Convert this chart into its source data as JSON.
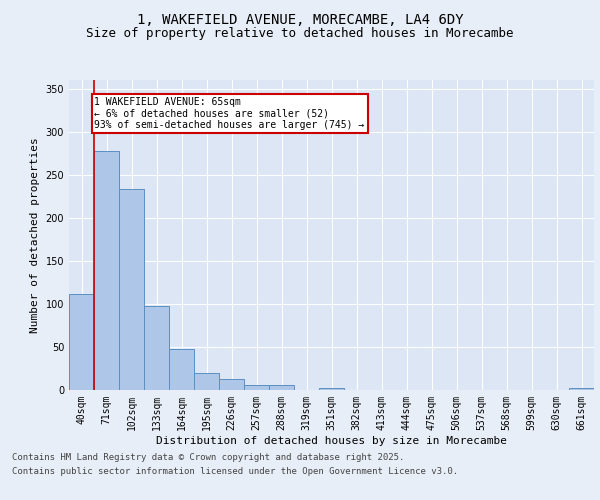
{
  "title_line1": "1, WAKEFIELD AVENUE, MORECAMBE, LA4 6DY",
  "title_line2": "Size of property relative to detached houses in Morecambe",
  "xlabel": "Distribution of detached houses by size in Morecambe",
  "ylabel": "Number of detached properties",
  "bar_labels": [
    "40sqm",
    "71sqm",
    "102sqm",
    "133sqm",
    "164sqm",
    "195sqm",
    "226sqm",
    "257sqm",
    "288sqm",
    "319sqm",
    "351sqm",
    "382sqm",
    "413sqm",
    "444sqm",
    "475sqm",
    "506sqm",
    "537sqm",
    "568sqm",
    "599sqm",
    "630sqm",
    "661sqm"
  ],
  "bar_values": [
    112,
    278,
    233,
    97,
    48,
    20,
    13,
    6,
    6,
    0,
    2,
    0,
    0,
    0,
    0,
    0,
    0,
    0,
    0,
    0,
    2
  ],
  "bar_color": "#aec6e8",
  "bar_edge_color": "#5a8fc2",
  "ylim": [
    0,
    360
  ],
  "yticks": [
    0,
    50,
    100,
    150,
    200,
    250,
    300,
    350
  ],
  "annotation_text": "1 WAKEFIELD AVENUE: 65sqm\n← 6% of detached houses are smaller (52)\n93% of semi-detached houses are larger (745) →",
  "annotation_box_color": "#ffffff",
  "annotation_box_edge": "#cc0000",
  "red_line_x": 0.5,
  "footer_line1": "Contains HM Land Registry data © Crown copyright and database right 2025.",
  "footer_line2": "Contains public sector information licensed under the Open Government Licence v3.0.",
  "background_color": "#e8eef7",
  "plot_bg_color": "#dce6f5",
  "grid_color": "#ffffff",
  "title_fontsize": 10,
  "subtitle_fontsize": 9,
  "axis_label_fontsize": 8,
  "tick_fontsize": 7,
  "footer_fontsize": 6.5
}
